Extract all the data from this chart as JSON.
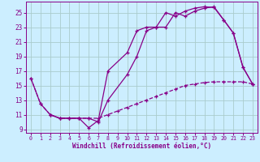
{
  "xlabel": "Windchill (Refroidissement éolien,°C)",
  "bg_color": "#cceeff",
  "line_color": "#880088",
  "grid_color": "#aacccc",
  "xlim": [
    -0.5,
    23.5
  ],
  "ylim": [
    8.5,
    26.5
  ],
  "yticks": [
    9,
    11,
    13,
    15,
    17,
    19,
    21,
    23,
    25
  ],
  "xticks": [
    0,
    1,
    2,
    3,
    4,
    5,
    6,
    7,
    8,
    9,
    10,
    11,
    12,
    13,
    14,
    15,
    16,
    17,
    18,
    19,
    20,
    21,
    22,
    23
  ],
  "curve1_x": [
    0,
    1,
    2,
    3,
    4,
    5,
    6,
    7,
    8,
    10,
    11,
    12,
    13,
    14,
    15,
    16,
    17,
    18,
    19,
    20,
    21,
    22,
    23
  ],
  "curve1_y": [
    16.0,
    12.5,
    11.0,
    10.5,
    10.5,
    10.5,
    9.2,
    10.2,
    17.0,
    19.5,
    22.5,
    23.0,
    23.0,
    25.0,
    24.5,
    25.2,
    25.6,
    25.8,
    25.7,
    24.0,
    22.2,
    17.5,
    15.2
  ],
  "curve2_x": [
    0,
    1,
    2,
    3,
    4,
    5,
    6,
    7,
    8,
    9,
    10,
    11,
    12,
    13,
    14,
    15,
    16,
    17,
    18,
    19,
    20,
    21,
    22,
    23
  ],
  "curve2_y": [
    16.0,
    12.5,
    11.0,
    10.5,
    10.5,
    10.5,
    10.5,
    10.5,
    11.0,
    11.5,
    12.0,
    12.5,
    13.0,
    13.5,
    14.0,
    14.5,
    15.0,
    15.2,
    15.4,
    15.5,
    15.5,
    15.5,
    15.5,
    15.2
  ],
  "curve3_x": [
    2,
    3,
    4,
    5,
    6,
    7,
    8,
    10,
    11,
    12,
    13,
    14,
    15,
    16,
    17,
    18,
    19,
    20,
    21,
    22,
    23
  ],
  "curve3_y": [
    11.0,
    10.5,
    10.5,
    10.5,
    10.5,
    10.0,
    13.0,
    16.5,
    19.0,
    22.5,
    23.0,
    23.0,
    25.0,
    24.5,
    25.2,
    25.6,
    25.8,
    24.0,
    22.2,
    17.5,
    15.2
  ]
}
